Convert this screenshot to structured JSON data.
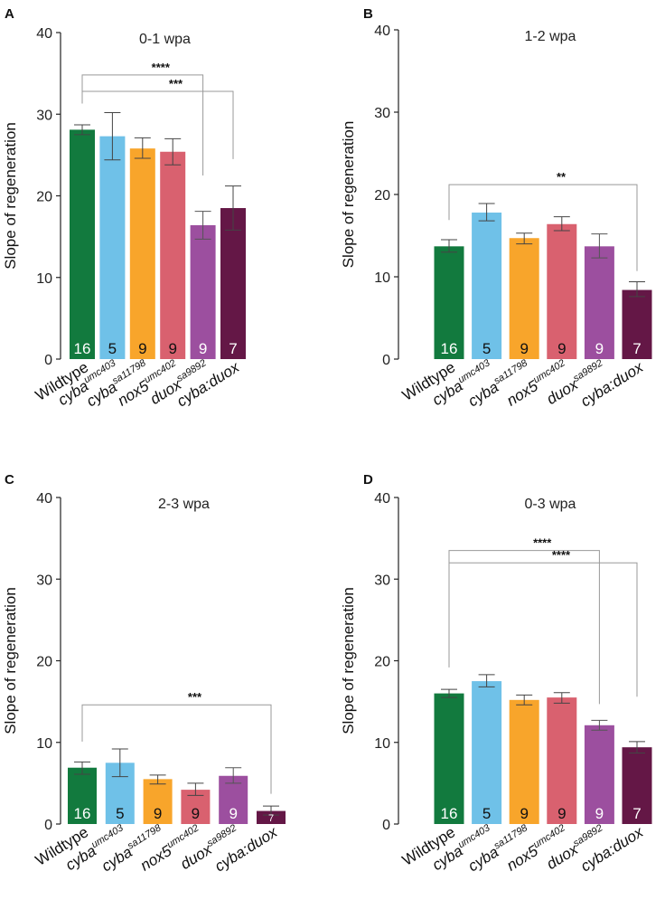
{
  "figure": {
    "ylabel": "Slope of regeneration",
    "genotypes": [
      {
        "base": "Wildtype",
        "sup": ""
      },
      {
        "base": "cyba",
        "sup": "umc403"
      },
      {
        "base": "cyba",
        "sup": "sa11798"
      },
      {
        "base": "nox5",
        "sup": "umc402"
      },
      {
        "base": "duox",
        "sup": "sa9892"
      },
      {
        "base": "cyba:duox",
        "sup": ""
      }
    ],
    "colors": [
      "#127a3e",
      "#6fc1e8",
      "#f8a52b",
      "#d9616f",
      "#9c4f9f",
      "#641746"
    ],
    "count_text_colors": [
      "#ffffff",
      "#111111",
      "#111111",
      "#111111",
      "#ffffff",
      "#ffffff"
    ]
  },
  "chart_data": [
    {
      "panel": "A",
      "type": "bar",
      "title": "0-1 wpa",
      "ylabel": "Slope of regeneration",
      "ylim": [
        0,
        40
      ],
      "yticks": [
        0,
        10,
        20,
        30,
        40
      ],
      "categories": [
        "Wildtype",
        "cyba umc403",
        "cyba sa11798",
        "nox5 umc402",
        "duox sa9892",
        "cyba:duox"
      ],
      "values": [
        28.1,
        27.3,
        25.8,
        25.4,
        16.4,
        18.5
      ],
      "err_low": [
        27.5,
        24.4,
        24.6,
        23.8,
        14.7,
        15.8
      ],
      "err_high": [
        28.7,
        30.2,
        27.1,
        27.0,
        18.1,
        21.2
      ],
      "n": [
        "16",
        "5",
        "9",
        "9",
        "9",
        "7"
      ],
      "significance": [
        {
          "from": 0,
          "to": 4,
          "label": "****",
          "y": 34.8,
          "end": 22.5
        },
        {
          "from": 0,
          "to": 5,
          "label": "***",
          "y": 32.8,
          "end": 24.5
        }
      ]
    },
    {
      "panel": "B",
      "type": "bar",
      "title": "1-2 wpa",
      "ylabel": "Slope of regeneration",
      "ylim": [
        0,
        40
      ],
      "yticks": [
        0,
        10,
        20,
        30,
        40
      ],
      "categories": [
        "Wildtype",
        "cyba umc403",
        "cyba sa11798",
        "nox5 umc402",
        "duox sa9892",
        "cyba:duox"
      ],
      "values": [
        13.7,
        17.8,
        14.7,
        16.4,
        13.7,
        8.4
      ],
      "err_low": [
        13.0,
        16.8,
        14.0,
        15.6,
        12.3,
        7.6
      ],
      "err_high": [
        14.5,
        18.9,
        15.3,
        17.3,
        15.2,
        9.4
      ],
      "n": [
        "16",
        "5",
        "9",
        "9",
        "9",
        "7"
      ],
      "significance": [
        {
          "from": 0,
          "to": 5,
          "label": "**",
          "y": 21.2,
          "end": 10.7
        }
      ]
    },
    {
      "panel": "C",
      "type": "bar",
      "title": "2-3 wpa",
      "ylabel": "Slope of regeneration",
      "ylim": [
        0,
        40
      ],
      "yticks": [
        0,
        10,
        20,
        30,
        40
      ],
      "categories": [
        "Wildtype",
        "cyba umc403",
        "cyba sa11798",
        "nox5 umc402",
        "duox sa9892",
        "cyba:duox"
      ],
      "values": [
        6.9,
        7.5,
        5.5,
        4.2,
        5.9,
        1.6
      ],
      "err_low": [
        6.1,
        5.8,
        4.9,
        3.5,
        5.0,
        1.1
      ],
      "err_high": [
        7.6,
        9.2,
        6.0,
        5.0,
        6.9,
        2.2
      ],
      "n": [
        "16",
        "5",
        "9",
        "9",
        "9",
        "7"
      ],
      "significance": [
        {
          "from": 0,
          "to": 5,
          "label": "***",
          "y": 14.6,
          "end": 3.7
        }
      ]
    },
    {
      "panel": "D",
      "type": "bar",
      "title": "0-3 wpa",
      "ylabel": "Slope of regeneration",
      "ylim": [
        0,
        40
      ],
      "yticks": [
        0,
        10,
        20,
        30,
        40
      ],
      "categories": [
        "Wildtype",
        "cyba umc403",
        "cyba sa11798",
        "nox5 umc402",
        "duox sa9892",
        "cyba:duox"
      ],
      "values": [
        16.0,
        17.5,
        15.2,
        15.5,
        12.1,
        9.4
      ],
      "err_low": [
        15.5,
        16.8,
        14.6,
        14.8,
        11.5,
        8.7
      ],
      "err_high": [
        16.5,
        18.3,
        15.8,
        16.1,
        12.7,
        10.1
      ],
      "n": [
        "16",
        "5",
        "9",
        "9",
        "9",
        "7"
      ],
      "significance": [
        {
          "from": 0,
          "to": 4,
          "label": "****",
          "y": 33.5,
          "end": 14.7
        },
        {
          "from": 0,
          "to": 5,
          "label": "****",
          "y": 32.0,
          "end": 15.6
        }
      ]
    }
  ]
}
